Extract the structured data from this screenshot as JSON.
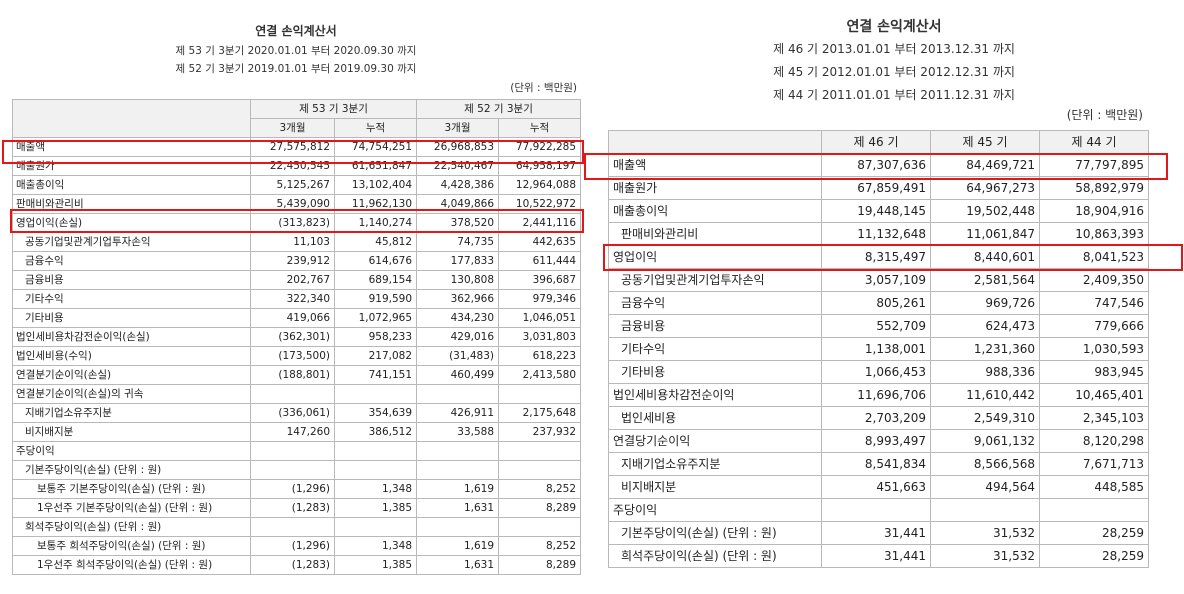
{
  "left": {
    "title": "연결 손익계산서",
    "period_lines": [
      "제 53 기 3분기 2020.01.01 부터 2020.09.30 까지",
      "제 52 기 3분기 2019.01.01 부터 2019.09.30 까지"
    ],
    "unit": "(단위 : 백만원)",
    "col_groups": [
      "제 53 기 3분기",
      "제 52 기 3분기"
    ],
    "sub_cols": [
      "3개월",
      "누적",
      "3개월",
      "누적"
    ],
    "rows": [
      {
        "label": "매출액",
        "indent": 0,
        "values": [
          "27,575,812",
          "74,754,251",
          "26,968,853",
          "77,922,285"
        ]
      },
      {
        "label": "매출원가",
        "indent": 0,
        "values": [
          "22,450,545",
          "61,651,847",
          "22,540,467",
          "64,958,197"
        ]
      },
      {
        "label": "매출총이익",
        "indent": 0,
        "values": [
          "5,125,267",
          "13,102,404",
          "4,428,386",
          "12,964,088"
        ]
      },
      {
        "label": "판매비와관리비",
        "indent": 0,
        "values": [
          "5,439,090",
          "11,962,130",
          "4,049,866",
          "10,522,972"
        ]
      },
      {
        "label": "영업이익(손실)",
        "indent": 0,
        "values": [
          "(313,823)",
          "1,140,274",
          "378,520",
          "2,441,116"
        ]
      },
      {
        "label": "공동기업및관계기업투자손익",
        "indent": 1,
        "values": [
          "11,103",
          "45,812",
          "74,735",
          "442,635"
        ]
      },
      {
        "label": "금융수익",
        "indent": 1,
        "values": [
          "239,912",
          "614,676",
          "177,833",
          "611,444"
        ]
      },
      {
        "label": "금융비용",
        "indent": 1,
        "values": [
          "202,767",
          "689,154",
          "130,808",
          "396,687"
        ]
      },
      {
        "label": "기타수익",
        "indent": 1,
        "values": [
          "322,340",
          "919,590",
          "362,966",
          "979,346"
        ]
      },
      {
        "label": "기타비용",
        "indent": 1,
        "values": [
          "419,066",
          "1,072,965",
          "434,230",
          "1,046,051"
        ]
      },
      {
        "label": "법인세비용차감전순이익(손실)",
        "indent": 0,
        "values": [
          "(362,301)",
          "958,233",
          "429,016",
          "3,031,803"
        ]
      },
      {
        "label": "법인세비용(수익)",
        "indent": 0,
        "values": [
          "(173,500)",
          "217,082",
          "(31,483)",
          "618,223"
        ]
      },
      {
        "label": "연결분기순이익(손실)",
        "indent": 0,
        "values": [
          "(188,801)",
          "741,151",
          "460,499",
          "2,413,580"
        ]
      },
      {
        "label": "연결분기순이익(손실)의 귀속",
        "indent": 0,
        "values": [
          "",
          "",
          "",
          ""
        ]
      },
      {
        "label": "지배기업소유주지분",
        "indent": 1,
        "values": [
          "(336,061)",
          "354,639",
          "426,911",
          "2,175,648"
        ]
      },
      {
        "label": "비지배지분",
        "indent": 1,
        "values": [
          "147,260",
          "386,512",
          "33,588",
          "237,932"
        ]
      },
      {
        "label": "주당이익",
        "indent": 0,
        "values": [
          "",
          "",
          "",
          ""
        ]
      },
      {
        "label": "기본주당이익(손실) (단위 : 원)",
        "indent": 1,
        "values": [
          "",
          "",
          "",
          ""
        ]
      },
      {
        "label": "보통주 기본주당이익(손실) (단위 : 원)",
        "indent": 2,
        "values": [
          "(1,296)",
          "1,348",
          "1,619",
          "8,252"
        ]
      },
      {
        "label": "1우선주 기본주당이익(손실) (단위 : 원)",
        "indent": 2,
        "values": [
          "(1,283)",
          "1,385",
          "1,631",
          "8,289"
        ]
      },
      {
        "label": "희석주당이익(손실) (단위 : 원)",
        "indent": 1,
        "values": [
          "",
          "",
          "",
          ""
        ]
      },
      {
        "label": "보통주 희석주당이익(손실) (단위 : 원)",
        "indent": 2,
        "values": [
          "(1,296)",
          "1,348",
          "1,619",
          "8,252"
        ]
      },
      {
        "label": "1우선주 희석주당이익(손실) (단위 : 원)",
        "indent": 2,
        "values": [
          "(1,283)",
          "1,385",
          "1,631",
          "8,289"
        ]
      }
    ]
  },
  "right": {
    "title": "연결 손익계산서",
    "period_lines": [
      "제 46 기 2013.01.01 부터 2013.12.31 까지",
      "제 45 기 2012.01.01 부터 2012.12.31 까지",
      "제 44 기 2011.01.01 부터 2011.12.31 까지"
    ],
    "unit": "(단위 : 백만원)",
    "cols": [
      "제 46 기",
      "제 45 기",
      "제 44 기"
    ],
    "rows": [
      {
        "label": "매출액",
        "indent": 0,
        "values": [
          "87,307,636",
          "84,469,721",
          "77,797,895"
        ]
      },
      {
        "label": "매출원가",
        "indent": 0,
        "values": [
          "67,859,491",
          "64,967,273",
          "58,892,979"
        ]
      },
      {
        "label": "매출총이익",
        "indent": 0,
        "values": [
          "19,448,145",
          "19,502,448",
          "18,904,916"
        ]
      },
      {
        "label": "판매비와관리비",
        "indent": 1,
        "values": [
          "11,132,648",
          "11,061,847",
          "10,863,393"
        ]
      },
      {
        "label": "영업이익",
        "indent": 0,
        "values": [
          "8,315,497",
          "8,440,601",
          "8,041,523"
        ]
      },
      {
        "label": "공동기업및관계기업투자손익",
        "indent": 1,
        "values": [
          "3,057,109",
          "2,581,564",
          "2,409,350"
        ]
      },
      {
        "label": "금융수익",
        "indent": 1,
        "values": [
          "805,261",
          "969,726",
          "747,546"
        ]
      },
      {
        "label": "금융비용",
        "indent": 1,
        "values": [
          "552,709",
          "624,473",
          "779,666"
        ]
      },
      {
        "label": "기타수익",
        "indent": 1,
        "values": [
          "1,138,001",
          "1,231,360",
          "1,030,593"
        ]
      },
      {
        "label": "기타비용",
        "indent": 1,
        "values": [
          "1,066,453",
          "988,336",
          "983,945"
        ]
      },
      {
        "label": "법인세비용차감전순이익",
        "indent": 0,
        "values": [
          "11,696,706",
          "11,610,442",
          "10,465,401"
        ]
      },
      {
        "label": "법인세비용",
        "indent": 1,
        "values": [
          "2,703,209",
          "2,549,310",
          "2,345,103"
        ]
      },
      {
        "label": "연결당기순이익",
        "indent": 0,
        "values": [
          "8,993,497",
          "9,061,132",
          "8,120,298"
        ]
      },
      {
        "label": "지배기업소유주지분",
        "indent": 1,
        "values": [
          "8,541,834",
          "8,566,568",
          "7,671,713"
        ]
      },
      {
        "label": "비지배지분",
        "indent": 1,
        "values": [
          "451,663",
          "494,564",
          "448,585"
        ]
      },
      {
        "label": "주당이익",
        "indent": 0,
        "values": [
          "",
          "",
          ""
        ]
      },
      {
        "label": "기본주당이익(손실) (단위 : 원)",
        "indent": 1,
        "values": [
          "31,441",
          "31,532",
          "28,259"
        ]
      },
      {
        "label": "희석주당이익(손실) (단위 : 원)",
        "indent": 1,
        "values": [
          "31,441",
          "31,532",
          "28,259"
        ]
      }
    ]
  }
}
